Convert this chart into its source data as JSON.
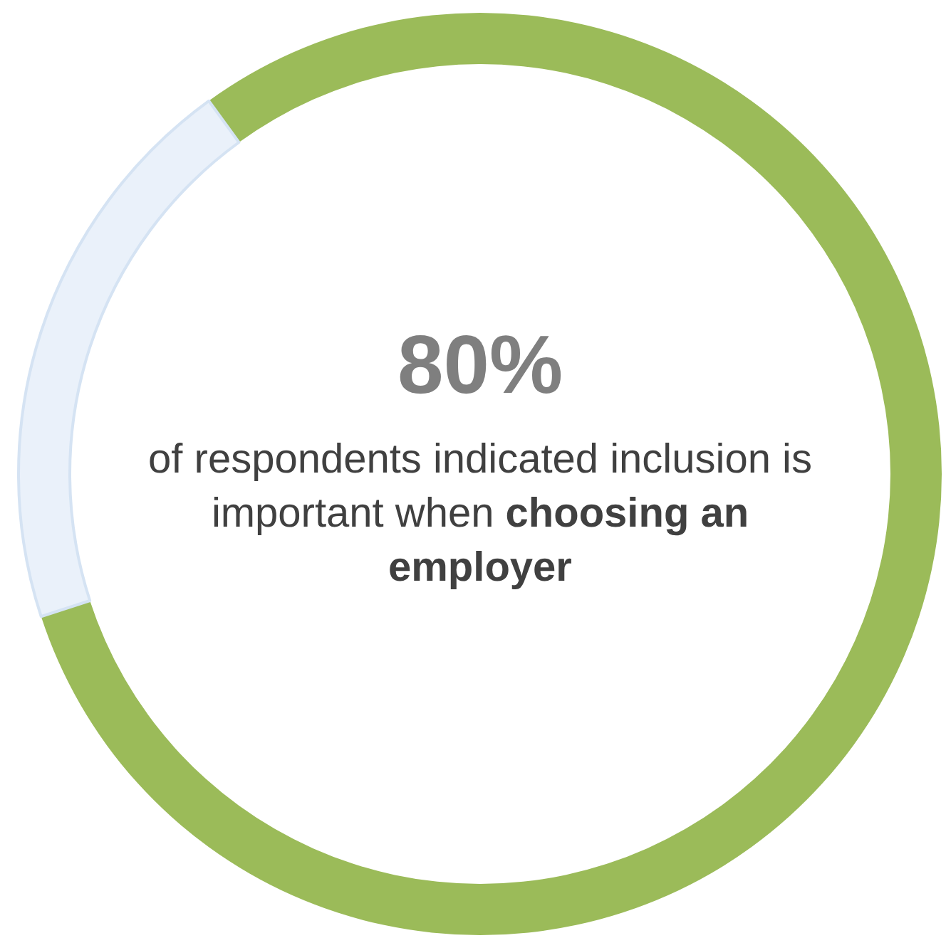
{
  "chart_data": {
    "type": "donut",
    "categories": [
      null,
      null
    ],
    "values": [
      80,
      20
    ],
    "colors": [
      "#9bbb59",
      "#eaf1fa"
    ],
    "value_labels": [
      "80%",
      null
    ],
    "annotations": [
      "of respondents indicated inclusion is important when",
      "choosing an employer"
    ]
  }
}
